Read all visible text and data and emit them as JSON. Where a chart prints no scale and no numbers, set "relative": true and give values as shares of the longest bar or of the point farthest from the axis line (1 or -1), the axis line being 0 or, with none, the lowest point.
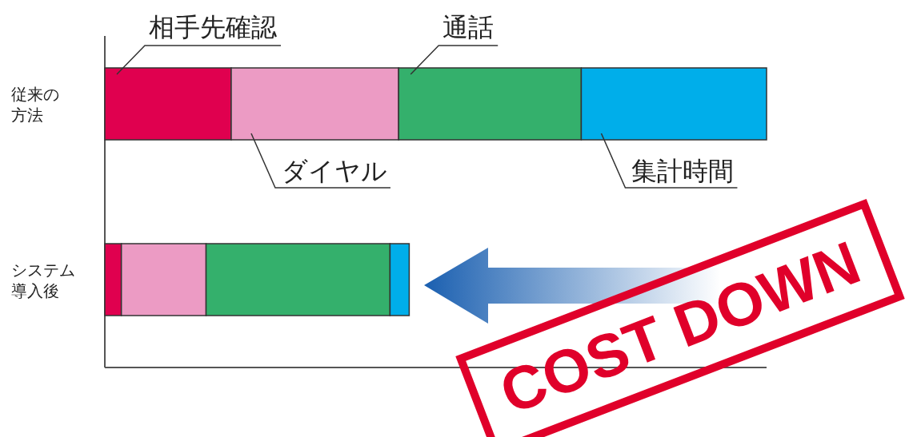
{
  "chart_data": {
    "type": "bar",
    "orientation": "horizontal",
    "stacked": true,
    "relative": true,
    "legend": false,
    "categories": [
      "従来の方法",
      "システム導入後"
    ],
    "series": [
      {
        "name": "相手先確認",
        "color": "#e0004f",
        "values": [
          0.191,
          0.025
        ]
      },
      {
        "name": "ダイヤル",
        "color": "#ec9bc4",
        "values": [
          0.253,
          0.128
        ]
      },
      {
        "name": "通話",
        "color": "#34b06c",
        "values": [
          0.276,
          0.278
        ]
      },
      {
        "name": "集計時間",
        "color": "#00aeea",
        "values": [
          0.28,
          0.029
        ]
      }
    ],
    "annotations": [
      "COST DOWN"
    ]
  }
}
